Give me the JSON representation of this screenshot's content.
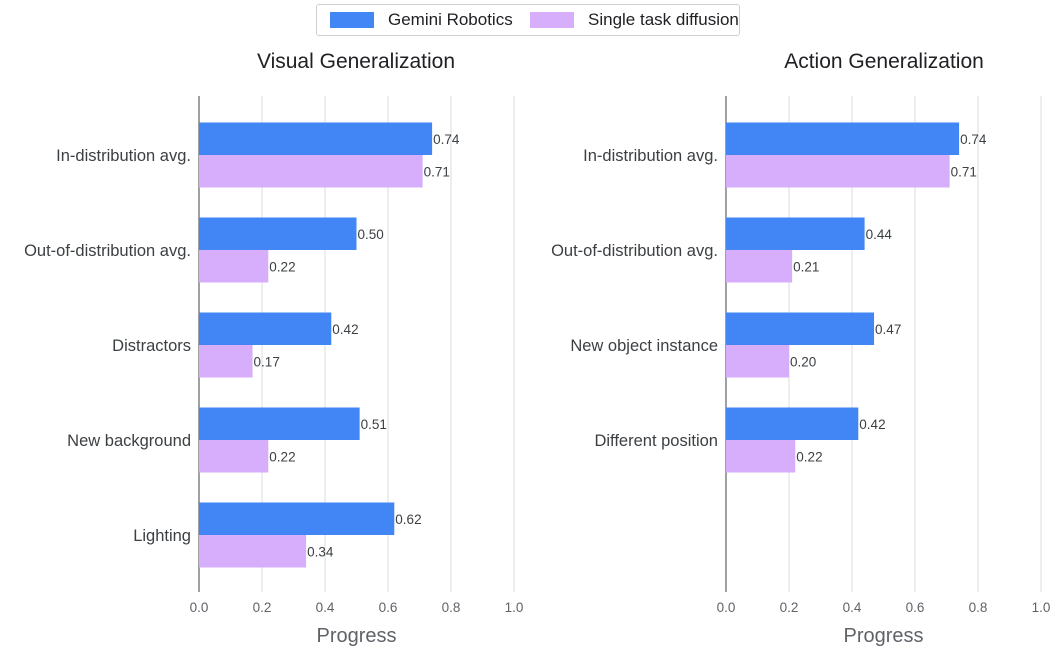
{
  "legend": {
    "series": [
      {
        "name": "Gemini Robotics",
        "color": "#4285f4"
      },
      {
        "name": "Single task diffusion",
        "color": "#d7aefb"
      }
    ]
  },
  "chart_data": [
    {
      "type": "bar",
      "orientation": "horizontal",
      "title": "Visual Generalization",
      "xlabel": "Progress",
      "ylabel": "",
      "xlim": [
        0,
        1
      ],
      "xticks": [
        "0.0",
        "0.2",
        "0.4",
        "0.6",
        "0.8",
        "1.0"
      ],
      "grid": true,
      "categories": [
        "In-distribution avg.",
        "Out-of-distribution avg.",
        "Distractors",
        "New background",
        "Lighting"
      ],
      "series": [
        {
          "name": "Gemini Robotics",
          "values": [
            0.74,
            0.5,
            0.42,
            0.51,
            0.62
          ]
        },
        {
          "name": "Single task diffusion",
          "values": [
            0.71,
            0.22,
            0.17,
            0.22,
            0.34
          ]
        }
      ]
    },
    {
      "type": "bar",
      "orientation": "horizontal",
      "title": "Action Generalization",
      "xlabel": "Progress",
      "ylabel": "",
      "xlim": [
        0,
        1
      ],
      "xticks": [
        "0.0",
        "0.2",
        "0.4",
        "0.6",
        "0.8",
        "1.0"
      ],
      "grid": true,
      "categories": [
        "In-distribution avg.",
        "Out-of-distribution avg.",
        "New object instance",
        "Different position"
      ],
      "series": [
        {
          "name": "Gemini Robotics",
          "values": [
            0.74,
            0.44,
            0.47,
            0.42
          ]
        },
        {
          "name": "Single task diffusion",
          "values": [
            0.71,
            0.21,
            0.2,
            0.22
          ]
        }
      ]
    }
  ]
}
